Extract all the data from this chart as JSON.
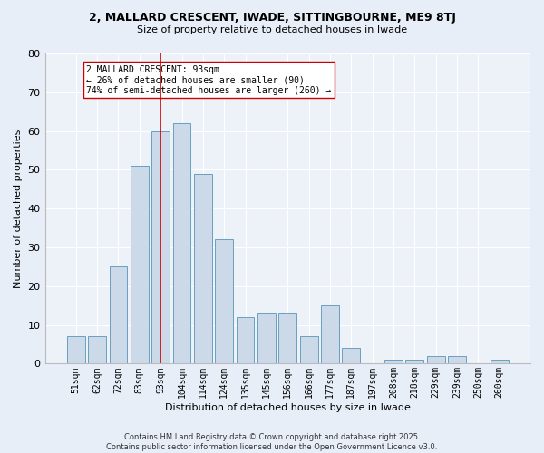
{
  "title1": "2, MALLARD CRESCENT, IWADE, SITTINGBOURNE, ME9 8TJ",
  "title2": "Size of property relative to detached houses in Iwade",
  "xlabel": "Distribution of detached houses by size in Iwade",
  "ylabel": "Number of detached properties",
  "categories": [
    "51sqm",
    "62sqm",
    "72sqm",
    "83sqm",
    "93sqm",
    "104sqm",
    "114sqm",
    "124sqm",
    "135sqm",
    "145sqm",
    "156sqm",
    "166sqm",
    "177sqm",
    "187sqm",
    "197sqm",
    "208sqm",
    "218sqm",
    "229sqm",
    "239sqm",
    "250sqm",
    "260sqm"
  ],
  "values": [
    7,
    7,
    25,
    51,
    60,
    62,
    49,
    32,
    12,
    13,
    13,
    7,
    15,
    4,
    0,
    1,
    1,
    2,
    2,
    0,
    1
  ],
  "bar_color": "#ccd9e8",
  "bar_edge_color": "#6a9fc0",
  "vline_x_index": 4,
  "vline_color": "#cc0000",
  "annotation_text": "2 MALLARD CRESCENT: 93sqm\n← 26% of detached houses are smaller (90)\n74% of semi-detached houses are larger (260) →",
  "annotation_box_color": "#ffffff",
  "annotation_box_edge": "#cc0000",
  "ylim": [
    0,
    80
  ],
  "yticks": [
    0,
    10,
    20,
    30,
    40,
    50,
    60,
    70,
    80
  ],
  "footer": "Contains HM Land Registry data © Crown copyright and database right 2025.\nContains public sector information licensed under the Open Government Licence v3.0.",
  "bg_color": "#e8eef8",
  "plot_bg_color": "#edf1f8"
}
